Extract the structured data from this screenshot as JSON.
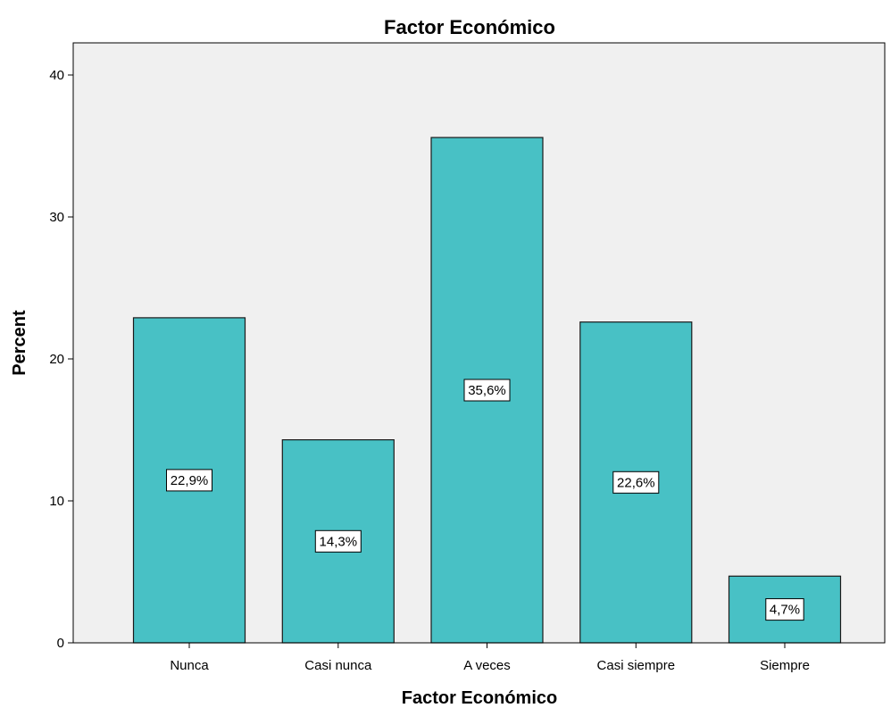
{
  "chart_data": {
    "type": "bar",
    "title": "Factor Económico",
    "xlabel": "Factor Económico",
    "ylabel": "Percent",
    "categories": [
      "Nunca",
      "Casi nunca",
      "A veces",
      "Casi siempre",
      "Siempre"
    ],
    "values": [
      22.9,
      14.3,
      35.6,
      22.6,
      4.7
    ],
    "data_labels": [
      "22,9%",
      "14,3%",
      "35,6%",
      "22,6%",
      "4,7%"
    ],
    "ylim": [
      0,
      42
    ],
    "yticks": [
      0,
      10,
      20,
      30,
      40
    ],
    "grid": false,
    "legend": "none",
    "colors": {
      "bar_fill": "#48c1c5",
      "bar_stroke": "#1a1a1a",
      "plot_background": "#f0f0f0",
      "label_box": "#ffffff"
    }
  }
}
